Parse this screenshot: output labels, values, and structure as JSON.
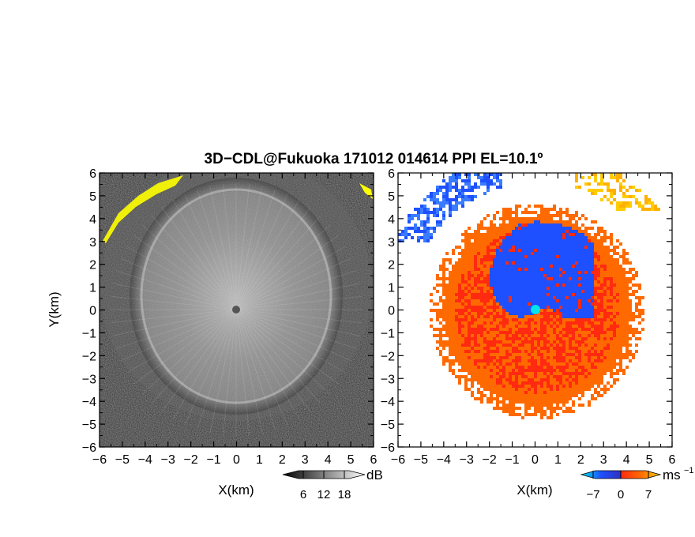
{
  "chart_data": {
    "title": "3D−CDL@Fukuoka 171012 014614 PPI EL=10.1º",
    "panels": [
      {
        "type": "heatmap",
        "quantity": "reflectivity",
        "xlabel": "X(km)",
        "ylabel": "Y(km)",
        "xlim": [
          -6,
          6
        ],
        "ylim": [
          -6,
          6
        ],
        "xticks": [
          "−6",
          "−5",
          "−4",
          "−3",
          "−2",
          "−1",
          "0",
          "1",
          "2",
          "3",
          "4",
          "5",
          "6"
        ],
        "yticks": [
          "−6",
          "−5",
          "−4",
          "−3",
          "−2",
          "−1",
          "0",
          "1",
          "2",
          "3",
          "4",
          "5",
          "6"
        ],
        "colormap": "grayscale",
        "colorbar": {
          "unit": "dB",
          "ticks": [
            "6",
            "12",
            "18"
          ],
          "range": [
            0,
            24
          ]
        },
        "highlight_color": "#ffff00"
      },
      {
        "type": "heatmap",
        "quantity": "doppler velocity",
        "xlabel": "X(km)",
        "xlim": [
          -6,
          6
        ],
        "ylim": [
          -6,
          6
        ],
        "xticks": [
          "−6",
          "−5",
          "−4",
          "−3",
          "−2",
          "−1",
          "0",
          "1",
          "2",
          "3",
          "4",
          "5",
          "6"
        ],
        "yticks": [
          "−6",
          "−5",
          "−4",
          "−3",
          "−2",
          "−1",
          "0",
          "1",
          "2",
          "3",
          "4",
          "5",
          "6"
        ],
        "colormap": "cyan-blue-red-orange-yellow",
        "colorbar": {
          "unit": "ms",
          "unit_exp": "−1",
          "ticks": [
            "−7",
            "0",
            "7"
          ],
          "range": [
            -10,
            10
          ]
        },
        "colors": {
          "cyan": "#00e5ee",
          "blue": "#1e50ff",
          "red": "#ff2a10",
          "orange": "#ff6a00",
          "yellow": "#ffcc00"
        }
      }
    ]
  }
}
